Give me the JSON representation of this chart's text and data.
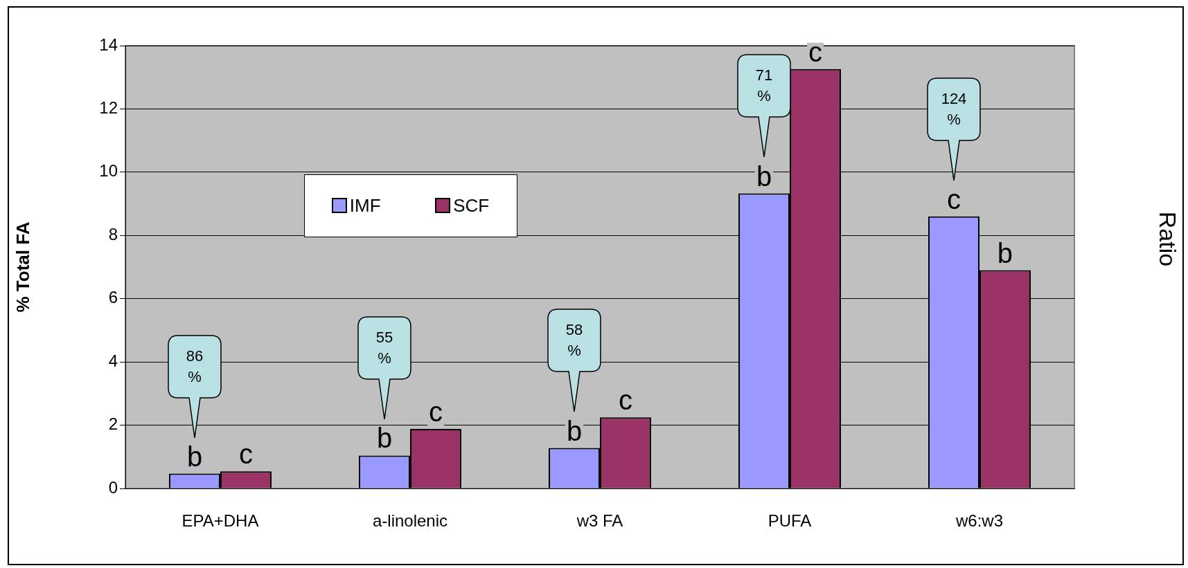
{
  "chart_data": {
    "type": "bar",
    "ylabel": "% Total FA",
    "y2label": "Ratio",
    "categories": [
      "EPA+DHA",
      "a-linolenic",
      "w3 FA",
      "PUFA",
      "w6:w3"
    ],
    "series": [
      {
        "name": "IMF",
        "color": "#9999ff",
        "values": [
          0.47,
          1.04,
          1.28,
          9.33,
          8.6
        ],
        "value_labels": [
          "b",
          "b",
          "b",
          "b",
          "c"
        ]
      },
      {
        "name": "SCF",
        "color": "#993366",
        "values": [
          0.54,
          1.88,
          2.25,
          13.26,
          6.9
        ],
        "value_labels": [
          "c",
          "c",
          "c",
          "c",
          "b"
        ]
      }
    ],
    "ylim": [
      0,
      14
    ],
    "yticks": [
      0,
      2,
      4,
      6,
      8,
      10,
      12,
      14
    ],
    "grid": "y",
    "legend": "top left",
    "annotations": [
      "86 %",
      "55 %",
      "58 %",
      "71 %",
      "124 %"
    ]
  }
}
